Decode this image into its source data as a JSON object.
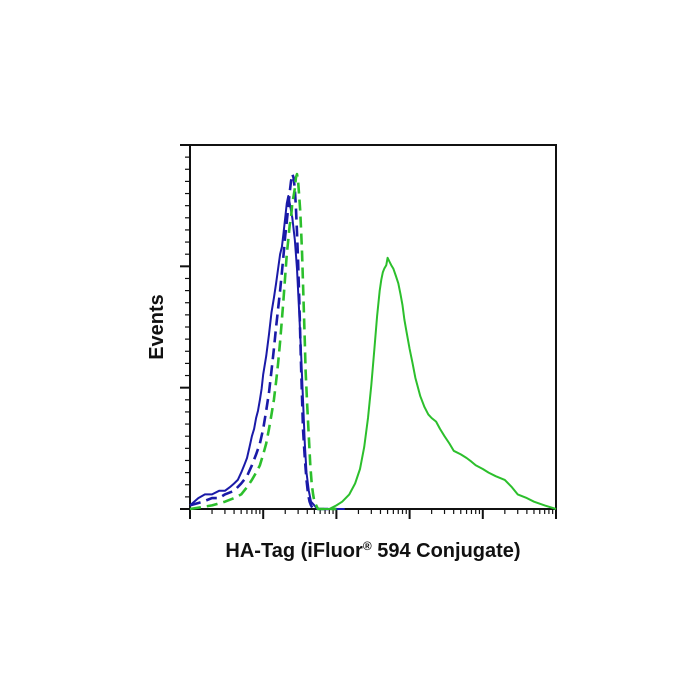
{
  "chart_data": {
    "type": "line",
    "title": "",
    "xlabel_main": "HA-Tag (iFluor",
    "xlabel_sup": "®",
    "xlabel_tail": " 594 Conjugate)",
    "ylabel": "Events",
    "x_scale": "log",
    "xlim": [
      1,
      100000
    ],
    "ylim": [
      0,
      100
    ],
    "grid": false,
    "legend": "none",
    "series": [
      {
        "color": "#1a1aa8",
        "style": "solid",
        "x": [
          1,
          1.3,
          1.6,
          2,
          2.5,
          3,
          3.5,
          4,
          4.5,
          5,
          5.5,
          6,
          6.5,
          7,
          7.5,
          8,
          8.5,
          9,
          9.5,
          10,
          11,
          12,
          13,
          14,
          15,
          16,
          17,
          18,
          19,
          20,
          21,
          22,
          23,
          24,
          25,
          27,
          29,
          31,
          33,
          35,
          37,
          39,
          42,
          45,
          50,
          55,
          65,
          80,
          100,
          130
        ],
        "y": [
          1,
          3,
          4,
          4,
          5,
          5,
          6,
          7,
          8,
          10,
          12,
          14,
          17,
          20,
          22,
          25,
          27,
          30,
          33,
          37,
          42,
          48,
          54,
          58,
          62,
          66,
          70,
          72,
          76,
          80,
          84,
          86,
          84,
          82,
          80,
          74,
          66,
          54,
          42,
          30,
          18,
          10,
          5,
          2,
          1,
          0,
          0,
          0,
          0,
          0
        ]
      },
      {
        "color": "#1a1aa8",
        "style": "dashed",
        "x": [
          1,
          1.5,
          2,
          2.5,
          3,
          4,
          5,
          6,
          7,
          8,
          9,
          10,
          11,
          12,
          13,
          14,
          15,
          16,
          17,
          18,
          19,
          20,
          21,
          22,
          23,
          24,
          25,
          26,
          27,
          28,
          29,
          30,
          31,
          32,
          33,
          34,
          35,
          37,
          39,
          41,
          43,
          45,
          48,
          52,
          58,
          65,
          80,
          100
        ],
        "y": [
          1,
          2,
          3,
          3,
          4,
          5,
          7,
          9,
          12,
          15,
          18,
          22,
          27,
          32,
          38,
          44,
          50,
          55,
          60,
          65,
          70,
          75,
          79,
          83,
          87,
          90,
          92,
          91,
          88,
          83,
          76,
          68,
          58,
          48,
          38,
          30,
          22,
          14,
          8,
          4,
          2,
          1,
          0,
          0,
          0,
          0,
          0,
          0
        ]
      },
      {
        "color": "#2cbf2c",
        "style": "dashed",
        "x": [
          1,
          2,
          3,
          4,
          5,
          6,
          7,
          8,
          9,
          10,
          11,
          12,
          13,
          14,
          15,
          16,
          17,
          18,
          19,
          20,
          21,
          22,
          23,
          24,
          25,
          26,
          27,
          28,
          29,
          30,
          31,
          32,
          33,
          34,
          35,
          36,
          37,
          38,
          40,
          42,
          44,
          46,
          48,
          50,
          53,
          56,
          60,
          70,
          80,
          100
        ],
        "y": [
          0,
          1,
          2,
          3,
          4,
          6,
          8,
          10,
          12,
          15,
          18,
          22,
          26,
          30,
          35,
          40,
          46,
          52,
          58,
          64,
          70,
          74,
          78,
          80,
          84,
          86,
          88,
          91,
          92,
          90,
          86,
          82,
          76,
          70,
          62,
          54,
          46,
          38,
          28,
          20,
          12,
          7,
          4,
          2,
          1,
          0,
          0,
          0,
          0,
          0
        ]
      },
      {
        "color": "#2cbf2c",
        "style": "solid",
        "x": [
          60,
          80,
          100,
          120,
          150,
          180,
          210,
          240,
          270,
          300,
          330,
          360,
          390,
          410,
          430,
          450,
          480,
          500,
          530,
          560,
          600,
          650,
          700,
          750,
          800,
          850,
          900,
          1000,
          1100,
          1200,
          1400,
          1600,
          1800,
          2000,
          2300,
          2600,
          3000,
          3500,
          4000,
          5000,
          6000,
          7000,
          8000,
          10000,
          12000,
          15000,
          20000,
          25000,
          30000,
          40000,
          50000,
          70000,
          100000
        ],
        "y": [
          0,
          0,
          1,
          2,
          4,
          7,
          11,
          17,
          25,
          34,
          44,
          53,
          60,
          63,
          65,
          66,
          67,
          69,
          68,
          67,
          66,
          64,
          62,
          59,
          56,
          52,
          49,
          44,
          40,
          36,
          31,
          28,
          26,
          25,
          24,
          22,
          20,
          18,
          16,
          15,
          14,
          13,
          12,
          11,
          10,
          9,
          8,
          6,
          4,
          3,
          2,
          1,
          0
        ]
      }
    ]
  },
  "colors": {
    "axis": "#111111",
    "blue": "#1a1aa8",
    "green": "#2cbf2c"
  }
}
